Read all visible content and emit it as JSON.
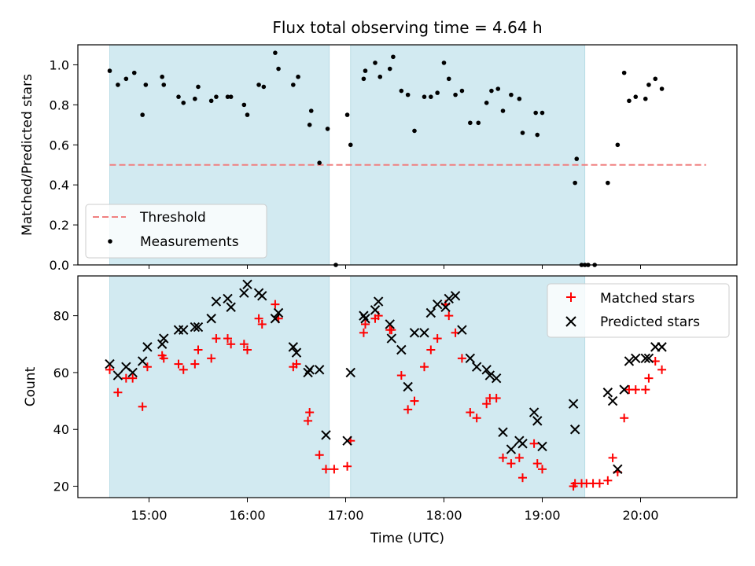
{
  "chart_data": {
    "type": "scatter",
    "title": "Flux total observing time = 4.64 h",
    "xlabel": "Time (UTC)",
    "x_ticks": [
      "15:00",
      "16:00",
      "17:00",
      "18:00",
      "19:00",
      "20:00"
    ],
    "shaded_intervals": [
      [
        "14:36",
        "16:50"
      ],
      [
        "17:03",
        "19:26"
      ]
    ],
    "shade_color": "#add8e6",
    "top_panel": {
      "ylabel": "Matched/Predicted stars",
      "ylim": [
        0,
        1.1
      ],
      "y_ticks": [
        "0.0",
        "0.2",
        "0.4",
        "0.6",
        "0.8",
        "1.0"
      ],
      "threshold": {
        "name": "Threshold",
        "value": 0.5,
        "color": "#f08080",
        "x_range": [
          "14:36",
          "20:40"
        ]
      },
      "series": [
        {
          "name": "Measurements",
          "color": "#000000",
          "points": [
            [
              "14:36",
              0.97
            ],
            [
              "14:41",
              0.9
            ],
            [
              "14:46",
              0.93
            ],
            [
              "14:51",
              0.96
            ],
            [
              "14:56",
              0.75
            ],
            [
              "14:58",
              0.9
            ],
            [
              "15:08",
              0.94
            ],
            [
              "15:09",
              0.9
            ],
            [
              "15:18",
              0.84
            ],
            [
              "15:21",
              0.81
            ],
            [
              "15:28",
              0.83
            ],
            [
              "15:30",
              0.89
            ],
            [
              "15:38",
              0.82
            ],
            [
              "15:41",
              0.84
            ],
            [
              "15:48",
              0.84
            ],
            [
              "15:50",
              0.84
            ],
            [
              "15:58",
              0.8
            ],
            [
              "16:00",
              0.75
            ],
            [
              "16:07",
              0.9
            ],
            [
              "16:10",
              0.89
            ],
            [
              "16:17",
              1.06
            ],
            [
              "16:19",
              0.98
            ],
            [
              "16:28",
              0.9
            ],
            [
              "16:31",
              0.94
            ],
            [
              "16:38",
              0.7
            ],
            [
              "16:39",
              0.77
            ],
            [
              "16:44",
              0.51
            ],
            [
              "16:49",
              0.68
            ],
            [
              "16:54",
              0.0
            ],
            [
              "17:01",
              0.75
            ],
            [
              "17:03",
              0.6
            ],
            [
              "17:11",
              0.93
            ],
            [
              "17:12",
              0.97
            ],
            [
              "17:18",
              1.01
            ],
            [
              "17:21",
              0.94
            ],
            [
              "17:27",
              0.98
            ],
            [
              "17:29",
              1.04
            ],
            [
              "17:34",
              0.87
            ],
            [
              "17:38",
              0.85
            ],
            [
              "17:42",
              0.67
            ],
            [
              "17:48",
              0.84
            ],
            [
              "17:52",
              0.84
            ],
            [
              "17:56",
              0.86
            ],
            [
              "18:00",
              1.01
            ],
            [
              "18:03",
              0.93
            ],
            [
              "18:07",
              0.85
            ],
            [
              "18:11",
              0.87
            ],
            [
              "18:16",
              0.71
            ],
            [
              "18:21",
              0.71
            ],
            [
              "18:26",
              0.81
            ],
            [
              "18:29",
              0.87
            ],
            [
              "18:33",
              0.88
            ],
            [
              "18:36",
              0.77
            ],
            [
              "18:41",
              0.85
            ],
            [
              "18:46",
              0.83
            ],
            [
              "18:48",
              0.66
            ],
            [
              "18:56",
              0.76
            ],
            [
              "18:57",
              0.65
            ],
            [
              "19:00",
              0.76
            ],
            [
              "19:20",
              0.41
            ],
            [
              "19:21",
              0.53
            ],
            [
              "19:24",
              0.0
            ],
            [
              "19:26",
              0.0
            ],
            [
              "19:28",
              0.0
            ],
            [
              "19:32",
              0.0
            ],
            [
              "19:40",
              0.41
            ],
            [
              "19:46",
              0.6
            ],
            [
              "19:50",
              0.96
            ],
            [
              "19:53",
              0.82
            ],
            [
              "19:57",
              0.84
            ],
            [
              "20:03",
              0.83
            ],
            [
              "20:05",
              0.9
            ],
            [
              "20:09",
              0.93
            ],
            [
              "20:13",
              0.88
            ]
          ]
        }
      ],
      "legend": {
        "position": "lower left",
        "entries": [
          "Threshold",
          "Measurements"
        ]
      }
    },
    "bottom_panel": {
      "ylabel": "Count",
      "ylim": [
        16,
        94
      ],
      "y_ticks": [
        "20",
        "40",
        "60",
        "80"
      ],
      "series": [
        {
          "name": "Matched stars",
          "color": "#ff0000",
          "marker": "plus",
          "points": [
            [
              "14:36",
              61
            ],
            [
              "14:41",
              53
            ],
            [
              "14:46",
              58
            ],
            [
              "14:50",
              58
            ],
            [
              "14:56",
              48
            ],
            [
              "14:59",
              62
            ],
            [
              "15:08",
              66
            ],
            [
              "15:09",
              65
            ],
            [
              "15:18",
              63
            ],
            [
              "15:21",
              61
            ],
            [
              "15:28",
              63
            ],
            [
              "15:30",
              68
            ],
            [
              "15:38",
              65
            ],
            [
              "15:41",
              72
            ],
            [
              "15:48",
              72
            ],
            [
              "15:50",
              70
            ],
            [
              "15:58",
              70
            ],
            [
              "16:00",
              68
            ],
            [
              "16:07",
              79
            ],
            [
              "16:09",
              77
            ],
            [
              "16:17",
              84
            ],
            [
              "16:19",
              79
            ],
            [
              "16:28",
              62
            ],
            [
              "16:30",
              63
            ],
            [
              "16:37",
              43
            ],
            [
              "16:38",
              46
            ],
            [
              "16:44",
              31
            ],
            [
              "16:48",
              26
            ],
            [
              "16:53",
              26
            ],
            [
              "17:01",
              27
            ],
            [
              "17:03",
              36
            ],
            [
              "17:11",
              74
            ],
            [
              "17:12",
              77
            ],
            [
              "17:18",
              79
            ],
            [
              "17:20",
              80
            ],
            [
              "17:27",
              75
            ],
            [
              "17:28",
              75
            ],
            [
              "17:34",
              59
            ],
            [
              "17:38",
              47
            ],
            [
              "17:42",
              50
            ],
            [
              "17:48",
              62
            ],
            [
              "17:52",
              68
            ],
            [
              "17:56",
              72
            ],
            [
              "18:01",
              84
            ],
            [
              "18:03",
              80
            ],
            [
              "18:07",
              74
            ],
            [
              "18:11",
              65
            ],
            [
              "18:16",
              46
            ],
            [
              "18:20",
              44
            ],
            [
              "18:26",
              49
            ],
            [
              "18:28",
              51
            ],
            [
              "18:32",
              51
            ],
            [
              "18:36",
              30
            ],
            [
              "18:41",
              28
            ],
            [
              "18:46",
              30
            ],
            [
              "18:48",
              23
            ],
            [
              "18:55",
              35
            ],
            [
              "18:57",
              28
            ],
            [
              "19:00",
              26
            ],
            [
              "19:19",
              20
            ],
            [
              "19:20",
              21
            ],
            [
              "19:24",
              21
            ],
            [
              "19:27",
              21
            ],
            [
              "19:31",
              21
            ],
            [
              "19:35",
              21
            ],
            [
              "19:40",
              22
            ],
            [
              "19:43",
              30
            ],
            [
              "19:46",
              25
            ],
            [
              "19:50",
              44
            ],
            [
              "19:53",
              54
            ],
            [
              "19:57",
              54
            ],
            [
              "20:03",
              54
            ],
            [
              "20:05",
              58
            ],
            [
              "20:09",
              64
            ],
            [
              "20:13",
              61
            ]
          ]
        },
        {
          "name": "Predicted stars",
          "color": "#000000",
          "marker": "x",
          "points": [
            [
              "14:36",
              63
            ],
            [
              "14:41",
              59
            ],
            [
              "14:46",
              62
            ],
            [
              "14:50",
              60
            ],
            [
              "14:56",
              64
            ],
            [
              "14:59",
              69
            ],
            [
              "15:08",
              70
            ],
            [
              "15:09",
              72
            ],
            [
              "15:18",
              75
            ],
            [
              "15:21",
              75
            ],
            [
              "15:28",
              76
            ],
            [
              "15:30",
              76
            ],
            [
              "15:38",
              79
            ],
            [
              "15:41",
              85
            ],
            [
              "15:48",
              86
            ],
            [
              "15:50",
              83
            ],
            [
              "15:58",
              88
            ],
            [
              "16:00",
              91
            ],
            [
              "16:07",
              88
            ],
            [
              "16:09",
              87
            ],
            [
              "16:17",
              79
            ],
            [
              "16:19",
              81
            ],
            [
              "16:28",
              69
            ],
            [
              "16:30",
              67
            ],
            [
              "16:37",
              60
            ],
            [
              "16:38",
              61
            ],
            [
              "16:44",
              61
            ],
            [
              "16:48",
              38
            ],
            [
              "17:01",
              36
            ],
            [
              "17:03",
              60
            ],
            [
              "17:11",
              80
            ],
            [
              "17:12",
              79
            ],
            [
              "17:18",
              82
            ],
            [
              "17:20",
              85
            ],
            [
              "17:27",
              77
            ],
            [
              "17:28",
              72
            ],
            [
              "17:34",
              68
            ],
            [
              "17:38",
              55
            ],
            [
              "17:42",
              74
            ],
            [
              "17:48",
              74
            ],
            [
              "17:52",
              81
            ],
            [
              "17:56",
              84
            ],
            [
              "18:01",
              83
            ],
            [
              "18:03",
              86
            ],
            [
              "18:07",
              87
            ],
            [
              "18:11",
              75
            ],
            [
              "18:16",
              65
            ],
            [
              "18:20",
              62
            ],
            [
              "18:26",
              61
            ],
            [
              "18:28",
              59
            ],
            [
              "18:32",
              58
            ],
            [
              "18:36",
              39
            ],
            [
              "18:41",
              33
            ],
            [
              "18:46",
              36
            ],
            [
              "18:48",
              35
            ],
            [
              "18:55",
              46
            ],
            [
              "18:57",
              43
            ],
            [
              "19:00",
              34
            ],
            [
              "19:19",
              49
            ],
            [
              "19:20",
              40
            ],
            [
              "19:40",
              53
            ],
            [
              "19:43",
              50
            ],
            [
              "19:46",
              26
            ],
            [
              "19:50",
              54
            ],
            [
              "19:53",
              64
            ],
            [
              "19:57",
              65
            ],
            [
              "20:03",
              65
            ],
            [
              "20:05",
              65
            ],
            [
              "20:09",
              69
            ],
            [
              "20:13",
              69
            ]
          ]
        }
      ],
      "legend": {
        "position": "upper right",
        "entries": [
          "Matched stars",
          "Predicted stars"
        ]
      }
    }
  }
}
